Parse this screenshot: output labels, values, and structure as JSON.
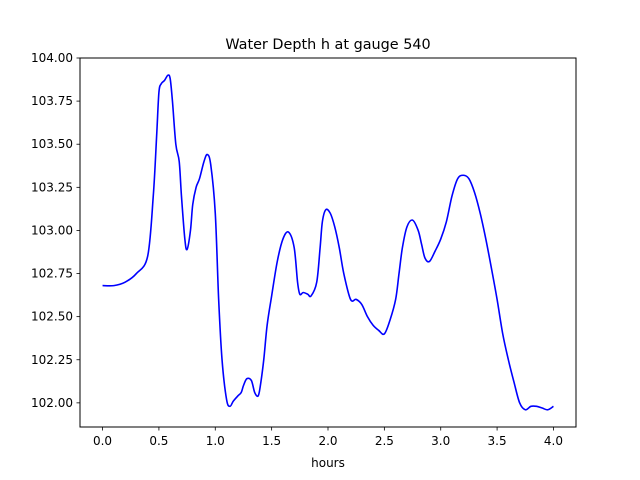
{
  "chart_data": {
    "type": "line",
    "title": "Water Depth h at gauge 540",
    "xlabel": "hours",
    "ylabel": "",
    "xlim": [
      -0.2,
      4.2
    ],
    "ylim": [
      101.86,
      104.0
    ],
    "grid": false,
    "xticks": [
      0.0,
      0.5,
      1.0,
      1.5,
      2.0,
      2.5,
      3.0,
      3.5,
      4.0
    ],
    "xtick_labels": [
      "0.0",
      "0.5",
      "1.0",
      "1.5",
      "2.0",
      "2.5",
      "3.0",
      "3.5",
      "4.0"
    ],
    "yticks": [
      102.0,
      102.25,
      102.5,
      102.75,
      103.0,
      103.25,
      103.5,
      103.75,
      104.0
    ],
    "ytick_labels": [
      "102.00",
      "102.25",
      "102.50",
      "102.75",
      "103.00",
      "103.25",
      "103.50",
      "103.75",
      "104.00"
    ],
    "series": [
      {
        "color": "#0000ff",
        "x": [
          0.0,
          0.1,
          0.2,
          0.3,
          0.4,
          0.45,
          0.48,
          0.5,
          0.52,
          0.55,
          0.58,
          0.6,
          0.62,
          0.65,
          0.68,
          0.7,
          0.73,
          0.75,
          0.78,
          0.8,
          0.83,
          0.86,
          0.9,
          0.93,
          0.96,
          1.0,
          1.03,
          1.06,
          1.1,
          1.13,
          1.16,
          1.2,
          1.23,
          1.25,
          1.28,
          1.32,
          1.35,
          1.38,
          1.4,
          1.43,
          1.46,
          1.5,
          1.55,
          1.6,
          1.65,
          1.7,
          1.73,
          1.75,
          1.78,
          1.82,
          1.85,
          1.9,
          1.93,
          1.95,
          1.98,
          2.02,
          2.06,
          2.1,
          2.14,
          2.2,
          2.25,
          2.3,
          2.35,
          2.4,
          2.45,
          2.5,
          2.55,
          2.6,
          2.63,
          2.66,
          2.7,
          2.75,
          2.8,
          2.83,
          2.86,
          2.9,
          2.95,
          3.0,
          3.05,
          3.1,
          3.15,
          3.2,
          3.25,
          3.3,
          3.35,
          3.4,
          3.45,
          3.5,
          3.55,
          3.6,
          3.65,
          3.7,
          3.75,
          3.8,
          3.85,
          3.9,
          3.95,
          4.0
        ],
        "y": [
          102.68,
          102.68,
          102.7,
          102.75,
          102.85,
          103.2,
          103.55,
          103.8,
          103.85,
          103.87,
          103.9,
          103.88,
          103.75,
          103.5,
          103.4,
          103.2,
          102.95,
          102.89,
          103.0,
          103.15,
          103.25,
          103.3,
          103.4,
          103.44,
          103.38,
          103.1,
          102.6,
          102.25,
          102.02,
          101.98,
          102.01,
          102.04,
          102.06,
          102.1,
          102.14,
          102.13,
          102.06,
          102.04,
          102.1,
          102.25,
          102.45,
          102.62,
          102.82,
          102.95,
          102.99,
          102.9,
          102.7,
          102.63,
          102.64,
          102.63,
          102.62,
          102.7,
          102.9,
          103.05,
          103.12,
          103.1,
          103.02,
          102.9,
          102.75,
          102.6,
          102.6,
          102.57,
          102.5,
          102.45,
          102.42,
          102.4,
          102.48,
          102.6,
          102.75,
          102.9,
          103.02,
          103.06,
          103.0,
          102.92,
          102.84,
          102.82,
          102.88,
          102.95,
          103.05,
          103.2,
          103.3,
          103.32,
          103.3,
          103.22,
          103.1,
          102.95,
          102.78,
          102.6,
          102.4,
          102.25,
          102.12,
          102.0,
          101.96,
          101.98,
          101.98,
          101.97,
          101.96,
          101.98
        ]
      }
    ]
  }
}
